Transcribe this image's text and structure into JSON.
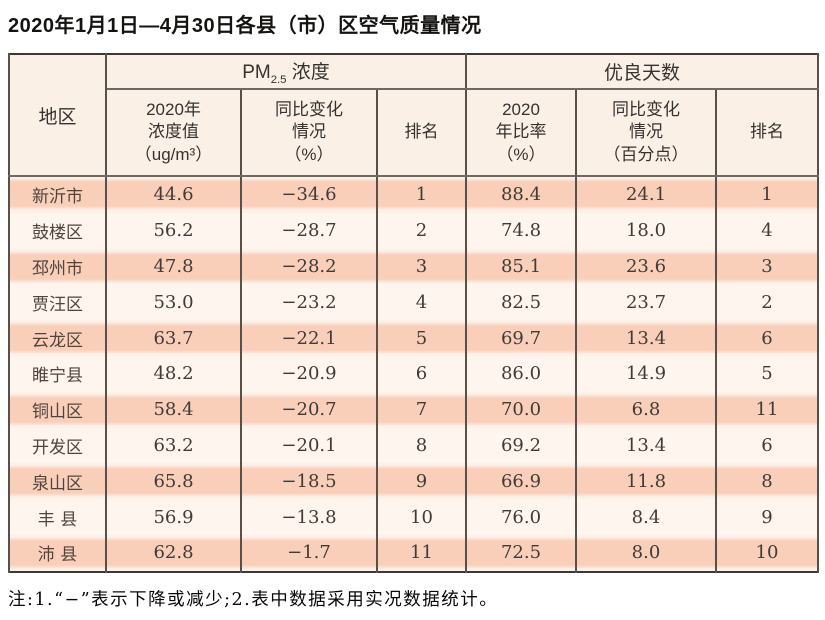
{
  "title": "2020年1月1日—4月30日各县（市）区空气质量情况",
  "table": {
    "header": {
      "region": "地区",
      "pm_group": {
        "prefix": "PM",
        "sub": "2.5",
        "suffix": " 浓度"
      },
      "good_group": "优良天数",
      "pm_value": "2020年\n浓度值\n（ug/m³）",
      "pm_change": "同比变化\n情况\n（%）",
      "pm_rank": "排名",
      "good_rate": "2020\n年比率\n（%）",
      "good_change": "同比变化\n情况\n（百分点）",
      "good_rank": "排名"
    },
    "rows": [
      {
        "region": "新沂市",
        "pm_value": "44.6",
        "pm_change": "−34.6",
        "pm_rank": "1",
        "good_rate": "88.4",
        "good_change": "24.1",
        "good_rank": "1"
      },
      {
        "region": "鼓楼区",
        "pm_value": "56.2",
        "pm_change": "−28.7",
        "pm_rank": "2",
        "good_rate": "74.8",
        "good_change": "18.0",
        "good_rank": "4"
      },
      {
        "region": "邳州市",
        "pm_value": "47.8",
        "pm_change": "−28.2",
        "pm_rank": "3",
        "good_rate": "85.1",
        "good_change": "23.6",
        "good_rank": "3"
      },
      {
        "region": "贾汪区",
        "pm_value": "53.0",
        "pm_change": "−23.2",
        "pm_rank": "4",
        "good_rate": "82.5",
        "good_change": "23.7",
        "good_rank": "2"
      },
      {
        "region": "云龙区",
        "pm_value": "63.7",
        "pm_change": "−22.1",
        "pm_rank": "5",
        "good_rate": "69.7",
        "good_change": "13.4",
        "good_rank": "6"
      },
      {
        "region": "睢宁县",
        "pm_value": "48.2",
        "pm_change": "−20.9",
        "pm_rank": "6",
        "good_rate": "86.0",
        "good_change": "14.9",
        "good_rank": "5"
      },
      {
        "region": "铜山区",
        "pm_value": "58.4",
        "pm_change": "−20.7",
        "pm_rank": "7",
        "good_rate": "70.0",
        "good_change": "6.8",
        "good_rank": "11"
      },
      {
        "region": "开发区",
        "pm_value": "63.2",
        "pm_change": "−20.1",
        "pm_rank": "8",
        "good_rate": "69.2",
        "good_change": "13.4",
        "good_rank": "6"
      },
      {
        "region": "泉山区",
        "pm_value": "65.8",
        "pm_change": "−18.5",
        "pm_rank": "9",
        "good_rate": "66.9",
        "good_change": "11.8",
        "good_rank": "8"
      },
      {
        "region": "丰 县",
        "pm_value": "56.9",
        "pm_change": "−13.8",
        "pm_rank": "10",
        "good_rate": "76.0",
        "good_change": "8.4",
        "good_rank": "9"
      },
      {
        "region": "沛 县",
        "pm_value": "62.8",
        "pm_change": "−1.7",
        "pm_rank": "11",
        "good_rate": "72.5",
        "good_change": "8.0",
        "good_rank": "10"
      }
    ]
  },
  "note": "注:1.“−”表示下降或减少;2.表中数据采用实况数据统计。",
  "colors": {
    "row_band": "#f9cfba",
    "row_light": "#fdf5ee",
    "header_bg": "#fbf0e6",
    "border_outer": "#3d3834",
    "border_inner": "#57514c",
    "title_text": "#151311",
    "cell_text": "#403b38"
  }
}
